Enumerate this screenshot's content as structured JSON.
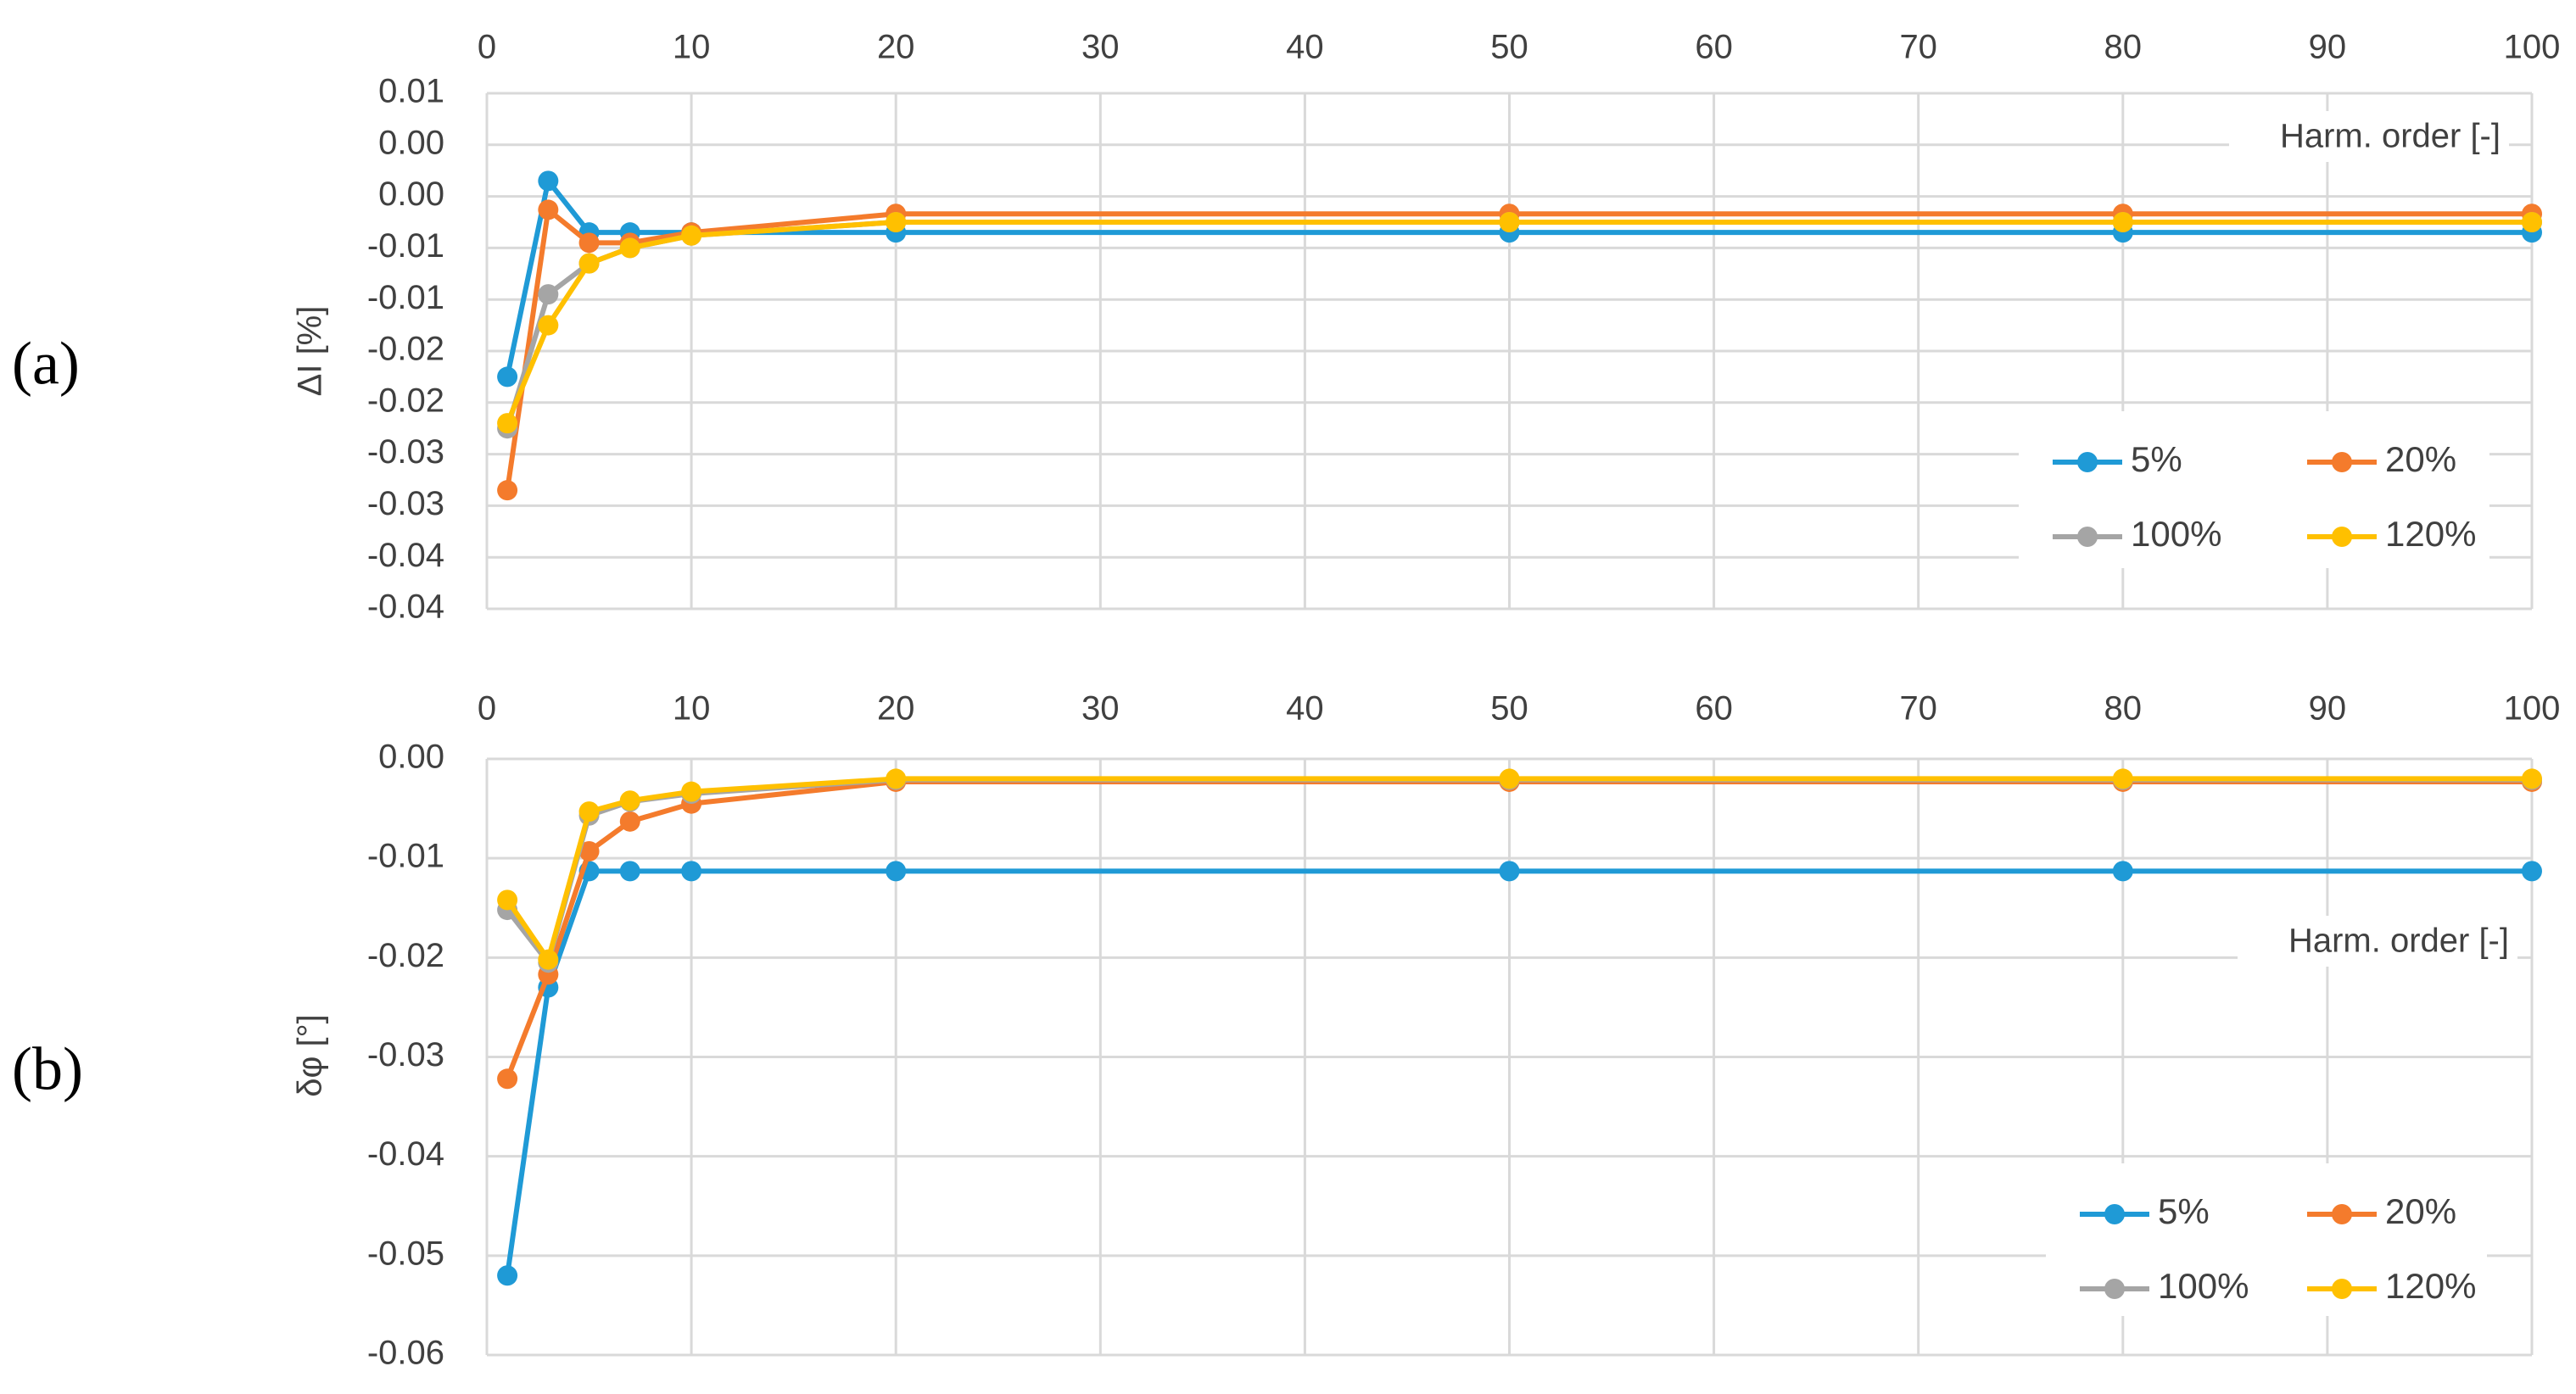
{
  "chart_data": [
    {
      "type": "line",
      "panel_label": "(a)",
      "xlabel": "Harm. order [-]",
      "ylabel": "ΔI [%]",
      "x_ticks": [
        0,
        10,
        20,
        30,
        40,
        50,
        60,
        70,
        80,
        90,
        100
      ],
      "x_tick_labels": [
        "0",
        "10",
        "20",
        "30",
        "40",
        "50",
        "60",
        "70",
        "80",
        "90",
        "100"
      ],
      "y_ticks": [
        0.01,
        0.005,
        0,
        -0.005,
        -0.01,
        -0.015,
        -0.02,
        -0.025,
        -0.03,
        -0.035,
        -0.04
      ],
      "y_tick_labels": [
        "0.01",
        "0.00",
        "0.00",
        "-0.01",
        "-0.01",
        "-0.02",
        "-0.02",
        "-0.03",
        "-0.03",
        "-0.04",
        "-0.04"
      ],
      "xlim": [
        0,
        100
      ],
      "ylim": [
        -0.04,
        0.01
      ],
      "x_axis_position": "top",
      "grid": true,
      "legend_position": "bottom-right",
      "x": [
        1,
        3,
        5,
        7,
        10,
        20,
        50,
        80,
        100
      ],
      "series": [
        {
          "name": "5%",
          "color": "#1f9ad6",
          "values": [
            -0.0175,
            0.0015,
            -0.0035,
            -0.0035,
            -0.0035,
            -0.0035,
            -0.0035,
            -0.0035,
            -0.0035
          ]
        },
        {
          "name": "20%",
          "color": "#f47b2c",
          "values": [
            -0.0285,
            -0.0013,
            -0.0045,
            -0.0045,
            -0.0035,
            -0.0017,
            -0.0017,
            -0.0017,
            -0.0017
          ]
        },
        {
          "name": "100%",
          "color": "#a5a5a5",
          "values": [
            -0.0225,
            -0.0095,
            -0.0065,
            -0.005,
            -0.0038,
            -0.0025,
            -0.0025,
            -0.0025,
            -0.0025
          ]
        },
        {
          "name": "120%",
          "color": "#ffc000",
          "values": [
            -0.022,
            -0.0125,
            -0.0065,
            -0.005,
            -0.0038,
            -0.0025,
            -0.0025,
            -0.0025,
            -0.0025
          ]
        }
      ]
    },
    {
      "type": "line",
      "panel_label": "(b)",
      "xlabel": "Harm. order [-]",
      "ylabel": "δφ [°]",
      "x_ticks": [
        0,
        10,
        20,
        30,
        40,
        50,
        60,
        70,
        80,
        90,
        100
      ],
      "x_tick_labels": [
        "0",
        "10",
        "20",
        "30",
        "40",
        "50",
        "60",
        "70",
        "80",
        "90",
        "100"
      ],
      "y_ticks": [
        0,
        -0.01,
        -0.02,
        -0.03,
        -0.04,
        -0.05,
        -0.06
      ],
      "y_tick_labels": [
        "0.00",
        "-0.01",
        "-0.02",
        "-0.03",
        "-0.04",
        "-0.05",
        "-0.06"
      ],
      "xlim": [
        0,
        100
      ],
      "ylim": [
        -0.06,
        0
      ],
      "x_axis_position": "top",
      "grid": true,
      "legend_position": "bottom-right",
      "x": [
        1,
        3,
        5,
        7,
        10,
        20,
        50,
        80,
        100
      ],
      "series": [
        {
          "name": "5%",
          "color": "#1f9ad6",
          "values": [
            -0.052,
            -0.023,
            -0.0113,
            -0.0113,
            -0.0113,
            -0.0113,
            -0.0113,
            -0.0113,
            -0.0113
          ]
        },
        {
          "name": "20%",
          "color": "#f47b2c",
          "values": [
            -0.0322,
            -0.0217,
            -0.0093,
            -0.0063,
            -0.0045,
            -0.0023,
            -0.0023,
            -0.0023,
            -0.0023
          ]
        },
        {
          "name": "100%",
          "color": "#a5a5a5",
          "values": [
            -0.0152,
            -0.0205,
            -0.0057,
            -0.0043,
            -0.0035,
            -0.0021,
            -0.0021,
            -0.0021,
            -0.0021
          ]
        },
        {
          "name": "120%",
          "color": "#ffc000",
          "values": [
            -0.0142,
            -0.0202,
            -0.0053,
            -0.0042,
            -0.0033,
            -0.002,
            -0.002,
            -0.002,
            -0.002
          ]
        }
      ]
    }
  ]
}
